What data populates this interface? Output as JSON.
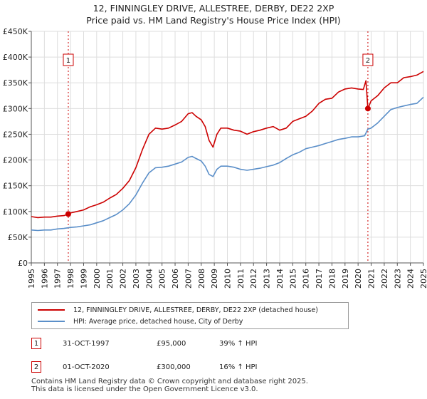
{
  "title_line1": "12, FINNINGLEY DRIVE, ALLESTREE, DERBY, DE22 2XP",
  "title_line2": "Price paid vs. HM Land Registry's House Price Index (HPI)",
  "colors": {
    "property": "#cc0000",
    "hpi": "#5b8fc9",
    "grid": "#dddddd",
    "marker_border": "#cc0000"
  },
  "chart_data": {
    "type": "line",
    "title": "Price paid vs. HM Land Registry's House Price Index (HPI)",
    "xlabel": "",
    "ylabel": "",
    "xlim": [
      1995,
      2025
    ],
    "ylim": [
      0,
      450000
    ],
    "xticks": [
      "1995",
      "1996",
      "1997",
      "1998",
      "1999",
      "2000",
      "2001",
      "2002",
      "2003",
      "2004",
      "2005",
      "2006",
      "2007",
      "2008",
      "2009",
      "2010",
      "2011",
      "2012",
      "2013",
      "2014",
      "2015",
      "2016",
      "2017",
      "2018",
      "2019",
      "2020",
      "2021",
      "2022",
      "2023",
      "2024",
      "2025"
    ],
    "yticks": [
      {
        "value": 0,
        "label": "£0"
      },
      {
        "value": 50000,
        "label": "£50K"
      },
      {
        "value": 100000,
        "label": "£100K"
      },
      {
        "value": 150000,
        "label": "£150K"
      },
      {
        "value": 200000,
        "label": "£200K"
      },
      {
        "value": 250000,
        "label": "£250K"
      },
      {
        "value": 300000,
        "label": "£300K"
      },
      {
        "value": 350000,
        "label": "£350K"
      },
      {
        "value": 400000,
        "label": "£400K"
      },
      {
        "value": 450000,
        "label": "£450K"
      }
    ],
    "grid": true,
    "legend_position": "below",
    "series": [
      {
        "name": "12, FINNINGLEY DRIVE, ALLESTREE, DERBY, DE22 2XP (detached house)",
        "color": "#cc0000",
        "x": [
          1995.0,
          1995.5,
          1996.0,
          1996.5,
          1997.0,
          1997.5,
          1997.83,
          1998.0,
          1998.5,
          1999.0,
          1999.5,
          2000.0,
          2000.5,
          2001.0,
          2001.5,
          2002.0,
          2002.5,
          2003.0,
          2003.5,
          2004.0,
          2004.5,
          2005.0,
          2005.5,
          2006.0,
          2006.5,
          2007.0,
          2007.3,
          2007.6,
          2008.0,
          2008.3,
          2008.6,
          2008.9,
          2009.2,
          2009.5,
          2010.0,
          2010.5,
          2011.0,
          2011.5,
          2012.0,
          2012.5,
          2013.0,
          2013.5,
          2014.0,
          2014.5,
          2015.0,
          2015.5,
          2016.0,
          2016.5,
          2017.0,
          2017.5,
          2018.0,
          2018.5,
          2019.0,
          2019.5,
          2020.0,
          2020.4,
          2020.6,
          2020.75,
          2021.0,
          2021.5,
          2022.0,
          2022.5,
          2023.0,
          2023.5,
          2024.0,
          2024.5,
          2025.0
        ],
        "values": [
          90000,
          88000,
          89000,
          89000,
          91000,
          92000,
          95000,
          97000,
          100000,
          103000,
          109000,
          113000,
          118000,
          126000,
          133000,
          145000,
          160000,
          185000,
          220000,
          250000,
          262000,
          260000,
          262000,
          268000,
          275000,
          290000,
          292000,
          285000,
          278000,
          265000,
          238000,
          225000,
          250000,
          262000,
          262000,
          258000,
          256000,
          250000,
          255000,
          258000,
          262000,
          265000,
          258000,
          262000,
          275000,
          280000,
          285000,
          295000,
          310000,
          318000,
          320000,
          332000,
          338000,
          340000,
          338000,
          337000,
          354000,
          300000,
          315000,
          325000,
          340000,
          350000,
          350000,
          360000,
          362000,
          365000,
          372000
        ]
      },
      {
        "name": "HPI: Average price, detached house, City of Derby",
        "color": "#5b8fc9",
        "x": [
          1995.0,
          1995.5,
          1996.0,
          1996.5,
          1997.0,
          1997.5,
          1998.0,
          1998.5,
          1999.0,
          1999.5,
          2000.0,
          2000.5,
          2001.0,
          2001.5,
          2002.0,
          2002.5,
          2003.0,
          2003.5,
          2004.0,
          2004.5,
          2005.0,
          2005.5,
          2006.0,
          2006.5,
          2007.0,
          2007.3,
          2007.6,
          2008.0,
          2008.3,
          2008.6,
          2008.9,
          2009.2,
          2009.5,
          2010.0,
          2010.5,
          2011.0,
          2011.5,
          2012.0,
          2012.5,
          2013.0,
          2013.5,
          2014.0,
          2014.5,
          2015.0,
          2015.5,
          2016.0,
          2016.5,
          2017.0,
          2017.5,
          2018.0,
          2018.5,
          2019.0,
          2019.5,
          2020.0,
          2020.5,
          2020.75,
          2021.0,
          2021.5,
          2022.0,
          2022.5,
          2023.0,
          2023.5,
          2024.0,
          2024.5,
          2025.0
        ],
        "values": [
          64000,
          63000,
          64000,
          64000,
          66000,
          67000,
          69000,
          70000,
          72000,
          74000,
          78000,
          82000,
          88000,
          94000,
          103000,
          115000,
          132000,
          155000,
          175000,
          185000,
          186000,
          188000,
          192000,
          196000,
          205000,
          207000,
          203000,
          198000,
          188000,
          172000,
          168000,
          182000,
          188000,
          188000,
          186000,
          182000,
          180000,
          182000,
          184000,
          187000,
          190000,
          195000,
          203000,
          210000,
          215000,
          222000,
          225000,
          228000,
          232000,
          236000,
          240000,
          242000,
          245000,
          245000,
          247000,
          260000,
          262000,
          272000,
          285000,
          298000,
          302000,
          305000,
          308000,
          310000,
          322000
        ]
      }
    ],
    "markers": [
      {
        "label": "1",
        "x": 1997.83,
        "y": 95000
      },
      {
        "label": "2",
        "x": 2020.75,
        "y": 300000
      }
    ]
  },
  "legend": {
    "property_label": "12, FINNINGLEY DRIVE, ALLESTREE, DERBY, DE22 2XP (detached house)",
    "hpi_label": "HPI: Average price, detached house, City of Derby"
  },
  "transactions": [
    {
      "num": "1",
      "date": "31-OCT-1997",
      "price": "£95,000",
      "hpi": "39% ↑ HPI"
    },
    {
      "num": "2",
      "date": "01-OCT-2020",
      "price": "£300,000",
      "hpi": "16% ↑ HPI"
    }
  ],
  "footer_line1": "Contains HM Land Registry data © Crown copyright and database right 2025.",
  "footer_line2": "This data is licensed under the Open Government Licence v3.0."
}
